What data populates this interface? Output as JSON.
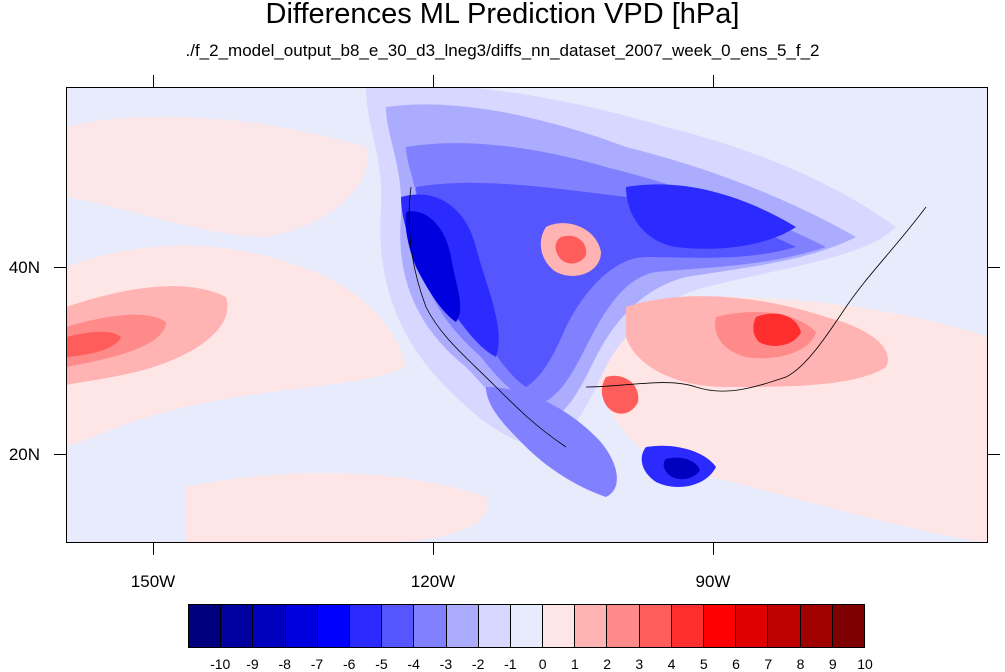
{
  "title": "Differences ML Prediction VPD [hPa]",
  "subtitle": "./f_2_model_output_b8_e_30_d3_lneg3/diffs_nn_dataset_2007_week_0_ens_5_f_2",
  "map": {
    "lat_labels": [
      "40N",
      "20N"
    ],
    "lon_labels": [
      "150W",
      "120W",
      "90W"
    ]
  },
  "colorbar": {
    "colors": [
      "#00007f",
      "#00009f",
      "#0000bf",
      "#0000df",
      "#0000ff",
      "#2b2bff",
      "#5656ff",
      "#8181ff",
      "#acacff",
      "#d7d7ff",
      "#e8ebfb",
      "#ffe6e6",
      "#ffb3b3",
      "#ff8a8a",
      "#ff5c5c",
      "#ff2e2e",
      "#ff0000",
      "#df0000",
      "#bf0000",
      "#9f0000",
      "#7f0000"
    ],
    "labels": [
      "-10",
      "-9",
      "-8",
      "-7",
      "-6",
      "-5",
      "-4",
      "-3",
      "-2",
      "-1",
      "0",
      "1",
      "2",
      "3",
      "4",
      "5",
      "6",
      "7",
      "8",
      "9",
      "10"
    ]
  }
}
